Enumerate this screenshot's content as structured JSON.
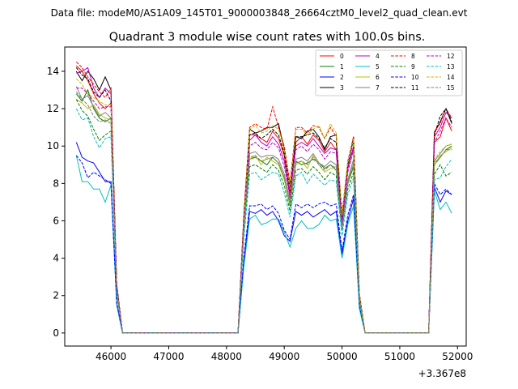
{
  "figure": {
    "suptitle": "Data file: modeM0/AS1A09_145T01_9000003848_26664cztM0_level2_quad_clean.evt",
    "offset_label": "+3.367e8"
  },
  "chart_data": {
    "type": "line",
    "title": "Quadrant 3 module wise count rates with 100.0s bins.",
    "xlabel": "",
    "ylabel": "",
    "x_offset": 336700000,
    "xlim": [
      45200,
      52150
    ],
    "ylim": [
      -0.7,
      15.3
    ],
    "xticks": [
      46000,
      47000,
      48000,
      49000,
      50000,
      51000,
      52000
    ],
    "xtick_labels": [
      "46000",
      "47000",
      "48000",
      "49000",
      "50000",
      "51000",
      "52000"
    ],
    "yticks": [
      0,
      2,
      4,
      6,
      8,
      10,
      12,
      14
    ],
    "ytick_labels": [
      "0",
      "2",
      "4",
      "6",
      "8",
      "10",
      "12",
      "14"
    ],
    "grid": false,
    "legend_placement": "top-right",
    "legend_columns": 4,
    "x": [
      45400,
      45500,
      45600,
      45700,
      45800,
      45900,
      46000,
      46100,
      46200,
      46300,
      46400,
      46500,
      46600,
      46700,
      46800,
      46900,
      47000,
      47100,
      47200,
      47300,
      47400,
      47500,
      47600,
      47700,
      47800,
      47900,
      48000,
      48100,
      48200,
      48300,
      48400,
      48500,
      48600,
      48700,
      48800,
      48900,
      49000,
      49100,
      49200,
      49300,
      49400,
      49500,
      49600,
      49700,
      49800,
      49900,
      50000,
      50100,
      50200,
      50300,
      50400,
      50500,
      50600,
      50700,
      50800,
      50900,
      51000,
      51100,
      51200,
      51300,
      51400,
      51500,
      51600,
      51700,
      51800,
      51900
    ],
    "series": [
      {
        "name": "0",
        "color": "#ff0000",
        "dash": false,
        "values": [
          14.3,
          14.0,
          13.5,
          12.8,
          12.3,
          12.0,
          12.3,
          2.5,
          0,
          0,
          0,
          0,
          0,
          0,
          0,
          0,
          0,
          0,
          0,
          0,
          0,
          0,
          0,
          0,
          0,
          0,
          0,
          0,
          0,
          6.0,
          10.6,
          10.6,
          10.4,
          10.2,
          10.8,
          10.4,
          9.5,
          7.2,
          10.2,
          10.5,
          10.1,
          10.6,
          10.3,
          9.7,
          10.2,
          9.8,
          6.2,
          8.8,
          9.9,
          2.0,
          0,
          0,
          0,
          0,
          0,
          0,
          0,
          0,
          0,
          0,
          0,
          0,
          10.2,
          10.5,
          11.5,
          10.8
        ]
      },
      {
        "name": "1",
        "color": "#008000",
        "dash": false,
        "values": [
          12.8,
          12.4,
          13.0,
          12.0,
          11.5,
          11.3,
          11.5,
          2.3,
          0,
          0,
          0,
          0,
          0,
          0,
          0,
          0,
          0,
          0,
          0,
          0,
          0,
          0,
          0,
          0,
          0,
          0,
          0,
          0,
          0,
          5.5,
          9.3,
          9.4,
          9.2,
          9.0,
          9.4,
          9.1,
          8.3,
          6.8,
          9.2,
          9.0,
          9.1,
          9.3,
          9.1,
          8.8,
          9.0,
          8.7,
          5.8,
          8.0,
          8.9,
          1.8,
          0,
          0,
          0,
          0,
          0,
          0,
          0,
          0,
          0,
          0,
          0,
          0,
          9.0,
          9.4,
          9.8,
          10.0
        ]
      },
      {
        "name": "2",
        "color": "#0000ff",
        "dash": false,
        "values": [
          10.2,
          9.4,
          9.2,
          9.1,
          8.6,
          8.1,
          8.1,
          1.6,
          0,
          0,
          0,
          0,
          0,
          0,
          0,
          0,
          0,
          0,
          0,
          0,
          0,
          0,
          0,
          0,
          0,
          0,
          0,
          0,
          0,
          3.8,
          6.5,
          6.4,
          6.6,
          6.3,
          6.5,
          6.0,
          5.2,
          4.9,
          6.5,
          6.3,
          6.5,
          6.2,
          6.4,
          6.6,
          6.3,
          6.5,
          4.2,
          6.0,
          7.2,
          1.4,
          0,
          0,
          0,
          0,
          0,
          0,
          0,
          0,
          0,
          0,
          0,
          0,
          7.8,
          7.0,
          7.6,
          7.4
        ]
      },
      {
        "name": "3",
        "color": "#000000",
        "dash": false,
        "values": [
          14.0,
          13.5,
          14.0,
          13.6,
          13.0,
          13.7,
          13.0,
          2.6,
          0,
          0,
          0,
          0,
          0,
          0,
          0,
          0,
          0,
          0,
          0,
          0,
          0,
          0,
          0,
          0,
          0,
          0,
          0,
          0,
          0,
          6.2,
          10.9,
          10.7,
          10.8,
          11.0,
          11.0,
          11.2,
          9.8,
          7.8,
          10.5,
          10.4,
          10.8,
          10.9,
          10.5,
          9.8,
          10.5,
          10.6,
          6.0,
          9.0,
          10.5,
          2.1,
          0,
          0,
          0,
          0,
          0,
          0,
          0,
          0,
          0,
          0,
          0,
          0,
          10.7,
          11.3,
          12.0,
          11.2
        ]
      },
      {
        "name": "4",
        "color": "#bf00bf",
        "dash": false,
        "values": [
          13.9,
          14.0,
          14.2,
          13.1,
          12.6,
          13.1,
          12.8,
          2.5,
          0,
          0,
          0,
          0,
          0,
          0,
          0,
          0,
          0,
          0,
          0,
          0,
          0,
          0,
          0,
          0,
          0,
          0,
          0,
          0,
          0,
          6.0,
          10.3,
          10.6,
          10.2,
          10.0,
          10.5,
          10.1,
          9.2,
          7.5,
          10.0,
          10.2,
          10.0,
          10.4,
          10.0,
          9.6,
          9.9,
          9.8,
          5.9,
          8.8,
          10.0,
          2.0,
          0,
          0,
          0,
          0,
          0,
          0,
          0,
          0,
          0,
          0,
          0,
          0,
          10.5,
          11.0,
          11.8,
          11.5
        ]
      },
      {
        "name": "5",
        "color": "#00bfbf",
        "dash": false,
        "values": [
          9.5,
          8.1,
          8.1,
          7.7,
          7.7,
          7.0,
          7.9,
          1.5,
          0,
          0,
          0,
          0,
          0,
          0,
          0,
          0,
          0,
          0,
          0,
          0,
          0,
          0,
          0,
          0,
          0,
          0,
          0,
          0,
          0,
          3.5,
          6.1,
          6.3,
          5.8,
          5.9,
          6.1,
          6.1,
          5.4,
          4.6,
          5.6,
          6.0,
          5.6,
          5.6,
          5.8,
          6.3,
          6.0,
          6.1,
          4.0,
          5.8,
          6.8,
          1.3,
          0,
          0,
          0,
          0,
          0,
          0,
          0,
          0,
          0,
          0,
          0,
          0,
          7.6,
          6.6,
          7.0,
          6.4
        ]
      },
      {
        "name": "6",
        "color": "#bfbf00",
        "dash": false,
        "values": [
          12.5,
          12.3,
          12.0,
          12.2,
          11.7,
          11.5,
          11.4,
          2.3,
          0,
          0,
          0,
          0,
          0,
          0,
          0,
          0,
          0,
          0,
          0,
          0,
          0,
          0,
          0,
          0,
          0,
          0,
          0,
          0,
          0,
          5.6,
          9.3,
          9.5,
          9.0,
          9.4,
          9.2,
          9.0,
          8.2,
          6.9,
          9.0,
          9.2,
          8.8,
          9.5,
          9.0,
          8.6,
          8.8,
          8.9,
          5.6,
          8.1,
          9.1,
          1.8,
          0,
          0,
          0,
          0,
          0,
          0,
          0,
          0,
          0,
          0,
          0,
          0,
          9.0,
          9.5,
          9.7,
          9.9
        ]
      },
      {
        "name": "7",
        "color": "#808080",
        "dash": false,
        "values": [
          13.2,
          12.5,
          12.7,
          12.1,
          11.6,
          11.8,
          11.5,
          2.3,
          0,
          0,
          0,
          0,
          0,
          0,
          0,
          0,
          0,
          0,
          0,
          0,
          0,
          0,
          0,
          0,
          0,
          0,
          0,
          0,
          0,
          5.7,
          9.6,
          9.7,
          9.4,
          9.5,
          9.5,
          9.3,
          8.5,
          7.0,
          9.3,
          9.4,
          9.2,
          9.6,
          9.1,
          8.9,
          9.2,
          9.0,
          5.7,
          8.2,
          9.3,
          1.9,
          0,
          0,
          0,
          0,
          0,
          0,
          0,
          0,
          0,
          0,
          0,
          0,
          9.2,
          9.6,
          10.0,
          10.1
        ]
      },
      {
        "name": "8",
        "color": "#ff0000",
        "dash": true,
        "values": [
          14.5,
          14.2,
          13.7,
          13.3,
          12.9,
          12.6,
          13.1,
          2.6,
          0,
          0,
          0,
          0,
          0,
          0,
          0,
          0,
          0,
          0,
          0,
          0,
          0,
          0,
          0,
          0,
          0,
          0,
          0,
          0,
          0,
          6.3,
          11.0,
          11.2,
          11.0,
          10.9,
          12.1,
          11.0,
          10.0,
          8.0,
          11.0,
          11.0,
          10.7,
          11.1,
          11.0,
          10.4,
          11.0,
          10.5,
          6.4,
          9.2,
          10.5,
          2.1,
          0,
          0,
          0,
          0,
          0,
          0,
          0,
          0,
          0,
          0,
          0,
          0,
          10.8,
          11.2,
          12.0,
          11.5
        ]
      },
      {
        "name": "9",
        "color": "#008000",
        "dash": true,
        "values": [
          12.5,
          11.9,
          11.6,
          10.9,
          10.3,
          10.6,
          10.8,
          2.1,
          0,
          0,
          0,
          0,
          0,
          0,
          0,
          0,
          0,
          0,
          0,
          0,
          0,
          0,
          0,
          0,
          0,
          0,
          0,
          0,
          0,
          5.3,
          8.9,
          9.0,
          8.8,
          8.6,
          9.0,
          8.7,
          7.9,
          6.5,
          8.7,
          8.8,
          8.5,
          8.9,
          8.6,
          8.2,
          8.6,
          8.4,
          5.5,
          7.7,
          8.6,
          1.7,
          0,
          0,
          0,
          0,
          0,
          0,
          0,
          0,
          0,
          0,
          0,
          0,
          8.5,
          9.0,
          8.4,
          8.6
        ]
      },
      {
        "name": "10",
        "color": "#0000ff",
        "dash": true,
        "values": [
          9.5,
          9.1,
          8.3,
          8.6,
          8.4,
          8.2,
          8.0,
          1.6,
          0,
          0,
          0,
          0,
          0,
          0,
          0,
          0,
          0,
          0,
          0,
          0,
          0,
          0,
          0,
          0,
          0,
          0,
          0,
          0,
          0,
          4.0,
          6.8,
          6.8,
          6.9,
          6.6,
          6.8,
          6.4,
          5.5,
          5.0,
          6.9,
          6.7,
          6.9,
          6.7,
          6.9,
          7.0,
          6.8,
          6.9,
          4.4,
          6.3,
          7.4,
          1.5,
          0,
          0,
          0,
          0,
          0,
          0,
          0,
          0,
          0,
          0,
          0,
          0,
          8.0,
          7.4,
          7.7,
          7.4
        ]
      },
      {
        "name": "11",
        "color": "#000000",
        "dash": true,
        "values": [
          14.2,
          13.8,
          13.6,
          12.9,
          12.6,
          13.0,
          12.4,
          2.5,
          0,
          0,
          0,
          0,
          0,
          0,
          0,
          0,
          0,
          0,
          0,
          0,
          0,
          0,
          0,
          0,
          0,
          0,
          0,
          0,
          0,
          6.1,
          10.6,
          10.7,
          10.4,
          10.6,
          10.9,
          10.6,
          9.6,
          7.6,
          10.5,
          10.5,
          10.6,
          10.7,
          10.4,
          9.9,
          10.4,
          10.2,
          6.2,
          9.0,
          10.3,
          2.0,
          0,
          0,
          0,
          0,
          0,
          0,
          0,
          0,
          0,
          0,
          0,
          0,
          10.6,
          11.6,
          12.0,
          11.3
        ]
      },
      {
        "name": "12",
        "color": "#bf00bf",
        "dash": true,
        "values": [
          13.1,
          13.1,
          12.8,
          12.4,
          12.0,
          12.1,
          12.1,
          2.4,
          0,
          0,
          0,
          0,
          0,
          0,
          0,
          0,
          0,
          0,
          0,
          0,
          0,
          0,
          0,
          0,
          0,
          0,
          0,
          0,
          0,
          5.9,
          10.0,
          10.2,
          9.9,
          9.8,
          10.2,
          9.9,
          8.9,
          7.3,
          9.8,
          10.0,
          9.7,
          10.1,
          9.8,
          9.3,
          9.7,
          9.6,
          5.9,
          8.6,
          9.8,
          1.9,
          0,
          0,
          0,
          0,
          0,
          0,
          0,
          0,
          0,
          0,
          0,
          0,
          10.2,
          10.8,
          11.5,
          11.0
        ]
      },
      {
        "name": "13",
        "color": "#00bfbf",
        "dash": true,
        "values": [
          12.0,
          11.4,
          11.5,
          10.5,
          9.9,
          10.4,
          10.5,
          2.1,
          0,
          0,
          0,
          0,
          0,
          0,
          0,
          0,
          0,
          0,
          0,
          0,
          0,
          0,
          0,
          0,
          0,
          0,
          0,
          0,
          0,
          5.0,
          8.5,
          8.6,
          8.2,
          8.4,
          8.6,
          8.5,
          7.5,
          6.2,
          8.4,
          8.6,
          8.0,
          8.5,
          8.2,
          7.9,
          8.2,
          8.1,
          5.2,
          7.4,
          8.3,
          1.6,
          0,
          0,
          0,
          0,
          0,
          0,
          0,
          0,
          0,
          0,
          0,
          0,
          8.2,
          8.3,
          8.9,
          9.3
        ]
      },
      {
        "name": "14",
        "color": "#bfbf00",
        "dash": true,
        "values": [
          13.6,
          13.3,
          12.8,
          12.6,
          12.4,
          12.2,
          12.2,
          2.4,
          0,
          0,
          0,
          0,
          0,
          0,
          0,
          0,
          0,
          0,
          0,
          0,
          0,
          0,
          0,
          0,
          0,
          0,
          0,
          0,
          0,
          5.9,
          10.9,
          11.1,
          10.7,
          10.8,
          11.1,
          10.9,
          9.8,
          7.7,
          10.9,
          10.9,
          10.6,
          10.9,
          11.1,
          10.4,
          11.2,
          10.7,
          6.3,
          9.1,
          10.4,
          2.1,
          0,
          0,
          0,
          0,
          0,
          0,
          0,
          0,
          0,
          0,
          0,
          0,
          9.3,
          9.7,
          10.0,
          10.1
        ]
      },
      {
        "name": "15",
        "color": "#808080",
        "dash": true,
        "values": [
          12.9,
          12.5,
          12.2,
          11.6,
          11.3,
          11.4,
          11.2,
          2.2,
          0,
          0,
          0,
          0,
          0,
          0,
          0,
          0,
          0,
          0,
          0,
          0,
          0,
          0,
          0,
          0,
          0,
          0,
          0,
          0,
          0,
          5.5,
          9.4,
          9.5,
          9.2,
          9.3,
          9.4,
          9.1,
          8.3,
          6.9,
          9.1,
          9.2,
          9.0,
          9.4,
          9.0,
          8.7,
          9.0,
          8.8,
          5.6,
          8.0,
          9.1,
          1.8,
          0,
          0,
          0,
          0,
          0,
          0,
          0,
          0,
          0,
          0,
          0,
          0,
          9.1,
          9.4,
          9.8,
          9.8
        ]
      }
    ]
  }
}
